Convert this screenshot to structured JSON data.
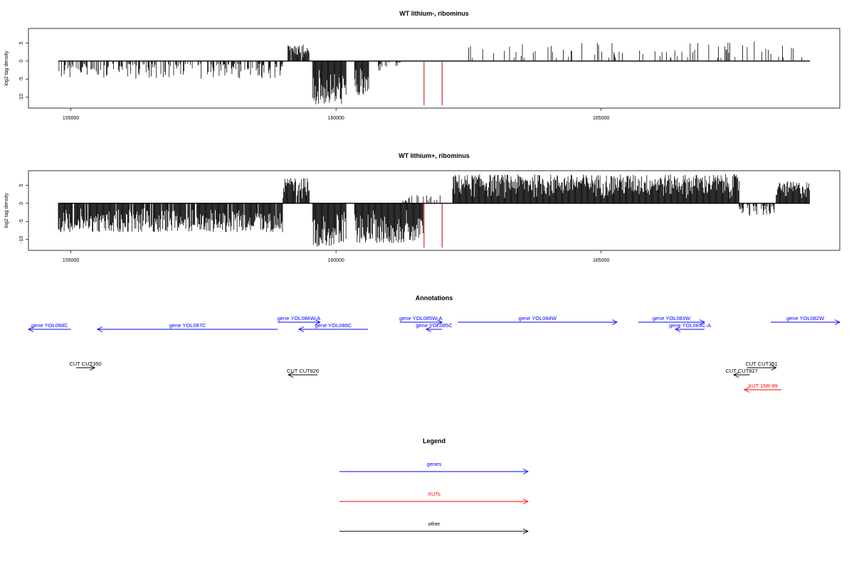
{
  "colors": {
    "gene": "#0000ff",
    "xut": "#ff0000",
    "other": "#000000",
    "marker": "#cc0000"
  },
  "chart_data": [
    {
      "type": "bar",
      "title": "WT lithium-, ribominus",
      "ylabel": "log2 tag density",
      "xlim": [
        154200,
        169500
      ],
      "ylim": [
        -13,
        9
      ],
      "x_ticks": [
        155000,
        160000,
        165000
      ],
      "y_ticks": [
        5,
        0,
        -5,
        -10
      ],
      "grid": false,
      "markers_x": [
        161660,
        162000
      ],
      "regions": [
        {
          "from": 154400,
          "to": 159000,
          "sign": -1,
          "peak": 5.0,
          "density": 0.45
        },
        {
          "from": 159080,
          "to": 159500,
          "sign": 1,
          "peak": 4.5,
          "density": 0.9
        },
        {
          "from": 159560,
          "to": 160200,
          "sign": -1,
          "peak": 12.0,
          "density": 1.0
        },
        {
          "from": 160350,
          "to": 160620,
          "sign": -1,
          "peak": 10.0,
          "density": 1.0
        },
        {
          "from": 160650,
          "to": 161300,
          "sign": -1,
          "peak": 3.0,
          "density": 0.15
        },
        {
          "from": 162500,
          "to": 169300,
          "sign": 1,
          "peak": 5.5,
          "density": 0.12
        }
      ]
    },
    {
      "type": "bar",
      "title": "WT lithium+, ribominus",
      "ylabel": "log2 tag density",
      "xlim": [
        154200,
        169500
      ],
      "ylim": [
        -13,
        9
      ],
      "x_ticks": [
        155000,
        160000,
        165000
      ],
      "y_ticks": [
        5,
        0,
        -5,
        -10
      ],
      "grid": false,
      "markers_x": [
        161660,
        162000
      ],
      "regions": [
        {
          "from": 154400,
          "to": 159000,
          "sign": -1,
          "peak": 8.0,
          "density": 0.9
        },
        {
          "from": 159000,
          "to": 159500,
          "sign": 1,
          "peak": 7.0,
          "density": 0.95
        },
        {
          "from": 159560,
          "to": 160200,
          "sign": -1,
          "peak": 12.0,
          "density": 1.0
        },
        {
          "from": 160350,
          "to": 161650,
          "sign": -1,
          "peak": 11.0,
          "density": 1.0
        },
        {
          "from": 161200,
          "to": 162000,
          "sign": 1,
          "peak": 2.5,
          "density": 0.3
        },
        {
          "from": 162200,
          "to": 167600,
          "sign": 1,
          "peak": 8.0,
          "density": 1.0
        },
        {
          "from": 167600,
          "to": 168300,
          "sign": -1,
          "peak": 3.5,
          "density": 0.5
        },
        {
          "from": 168300,
          "to": 169300,
          "sign": 1,
          "peak": 6.0,
          "density": 1.0
        }
      ]
    }
  ],
  "annotations": {
    "title": "Annotations",
    "features": [
      {
        "label": "gene YOL088C",
        "kind": "gene",
        "strand": "-",
        "start": 154200,
        "end": 155000
      },
      {
        "label": "gene YOL087C",
        "kind": "gene",
        "strand": "-",
        "start": 155500,
        "end": 158900
      },
      {
        "label": "gene YOL086W-A",
        "kind": "gene",
        "strand": "+",
        "start": 158900,
        "end": 159700
      },
      {
        "label": "gene YOL086C",
        "kind": "gene",
        "strand": "-",
        "start": 159300,
        "end": 160600
      },
      {
        "label": "gene YOL085W-A",
        "kind": "gene",
        "strand": "+",
        "start": 161200,
        "end": 162000
      },
      {
        "label": "gene YOL085C",
        "kind": "gene",
        "strand": "-",
        "start": 161700,
        "end": 162000
      },
      {
        "label": "gene YOL084W",
        "kind": "gene",
        "strand": "+",
        "start": 162300,
        "end": 165300
      },
      {
        "label": "gene YOL083W",
        "kind": "gene",
        "strand": "+",
        "start": 165700,
        "end": 166950
      },
      {
        "label": "gene YOL083C-A",
        "kind": "gene",
        "strand": "-",
        "start": 166400,
        "end": 166950
      },
      {
        "label": "gene YOL082W",
        "kind": "gene",
        "strand": "+",
        "start": 168200,
        "end": 169500
      },
      {
        "label": "CUT CUT350",
        "kind": "other",
        "strand": "+",
        "start": 155100,
        "end": 155450
      },
      {
        "label": "CUT CUT826",
        "kind": "other",
        "strand": "-",
        "start": 159100,
        "end": 159650
      },
      {
        "label": "CUT CUT827",
        "kind": "other",
        "strand": "-",
        "start": 167500,
        "end": 167800
      },
      {
        "label": "CUT CUT351",
        "kind": "other",
        "strand": "+",
        "start": 167750,
        "end": 168300
      },
      {
        "label": "XUT 15R-99",
        "kind": "xut",
        "strand": "-",
        "start": 167700,
        "end": 168400
      }
    ]
  },
  "legend": {
    "title": "Legend",
    "items": [
      {
        "label": "genes",
        "kind": "gene"
      },
      {
        "label": "XUTs",
        "kind": "xut"
      },
      {
        "label": "other",
        "kind": "other"
      }
    ]
  }
}
